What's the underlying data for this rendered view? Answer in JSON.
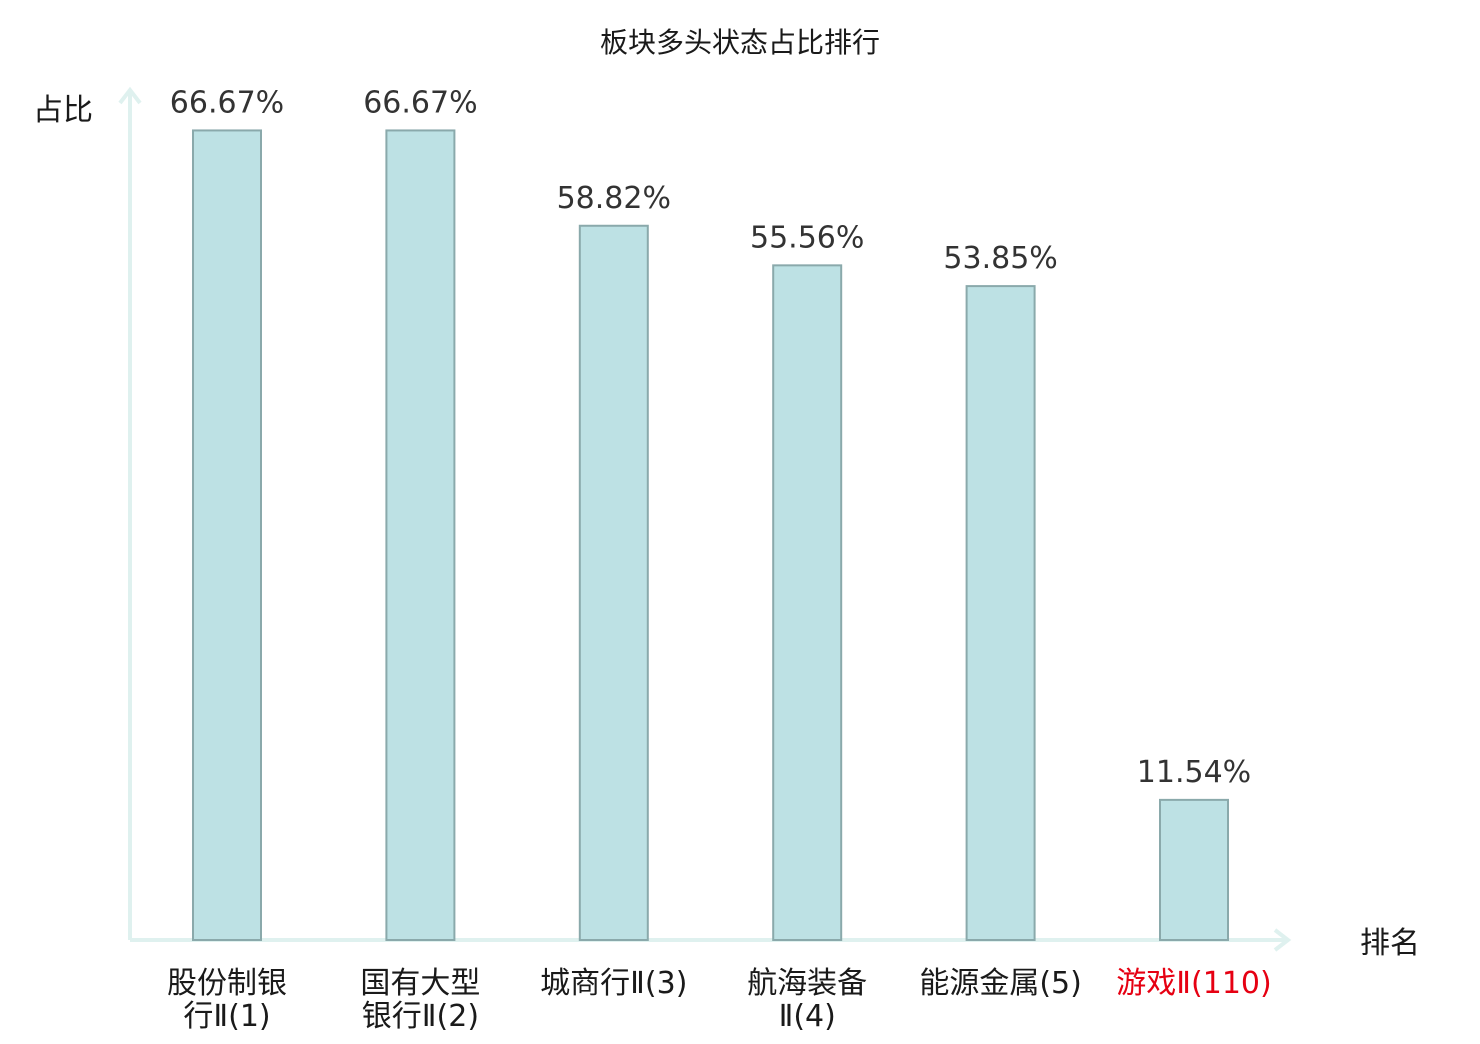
{
  "chart_data": {
    "type": "bar",
    "title": "板块多头状态占比排行",
    "ylabel": "占比",
    "xlabel": "排名",
    "ylim": [
      0,
      70
    ],
    "grid": false,
    "legend": "none",
    "categories": [
      {
        "label_lines": [
          "股份制银",
          "行Ⅱ(1)"
        ],
        "highlight": false
      },
      {
        "label_lines": [
          "国有大型",
          "银行Ⅱ(2)"
        ],
        "highlight": false
      },
      {
        "label_lines": [
          "城商行Ⅱ(3)"
        ],
        "highlight": false
      },
      {
        "label_lines": [
          "航海装备",
          "Ⅱ(4)"
        ],
        "highlight": false
      },
      {
        "label_lines": [
          "能源金属(5)"
        ],
        "highlight": false
      },
      {
        "label_lines": [
          "游戏Ⅱ(110)"
        ],
        "highlight": true
      }
    ],
    "values": [
      66.67,
      66.67,
      58.82,
      55.56,
      53.85,
      11.54
    ],
    "value_labels": [
      "66.67%",
      "66.67%",
      "58.82%",
      "55.56%",
      "53.85%",
      "11.54%"
    ],
    "colors": {
      "bar_fill": "#bde1e4",
      "bar_stroke": "#8aa9ab",
      "axis": "#dff1ef",
      "highlight_text": "#e60012"
    }
  }
}
